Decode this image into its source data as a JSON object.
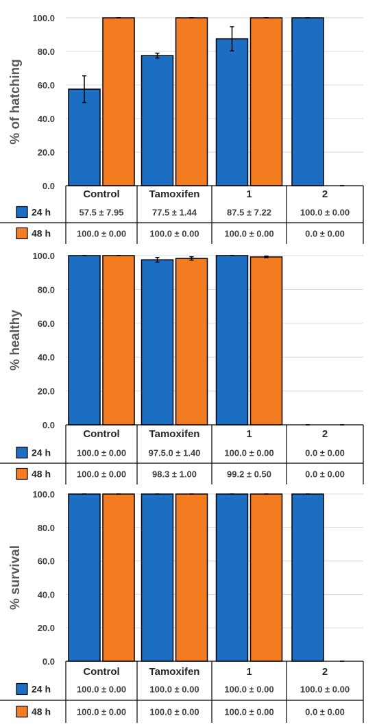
{
  "colors": {
    "h24": "#1b6ec2",
    "h48": "#f47c20",
    "grid": "#d9d9d9",
    "text": "#404040"
  },
  "chart_data": [
    {
      "type": "bar",
      "ylabel": "% of hatching",
      "ylim": [
        0,
        100
      ],
      "yticks": [
        "0.0",
        "20.0",
        "40.0",
        "60.0",
        "80.0",
        "100.0"
      ],
      "grid": true,
      "categories": [
        "Control",
        "Tamoxifen",
        "1",
        "2"
      ],
      "series": [
        {
          "name": "24 h",
          "values": [
            57.5,
            77.5,
            87.5,
            100.0
          ],
          "errors": [
            7.95,
            1.44,
            7.22,
            0.0
          ],
          "labels": [
            "57.5 ± 7.95",
            "77.5 ± 1.44",
            "87.5 ± 7.22",
            "100.0 ± 0.00"
          ]
        },
        {
          "name": "48 h",
          "values": [
            100.0,
            100.0,
            100.0,
            0.0
          ],
          "errors": [
            0.0,
            0.0,
            0.0,
            0.0
          ],
          "labels": [
            "100.0 ± 0.00",
            "100.0 ± 0.00",
            "100.0 ± 0.00",
            "0.0 ± 0.00"
          ]
        }
      ]
    },
    {
      "type": "bar",
      "ylabel": "% healthy",
      "ylim": [
        0,
        100
      ],
      "yticks": [
        "0.0",
        "20.0",
        "40.0",
        "60.0",
        "80.0",
        "100.0"
      ],
      "grid": true,
      "categories": [
        "Control",
        "Tamoxifen",
        "1",
        "2"
      ],
      "series": [
        {
          "name": "24 h",
          "values": [
            100.0,
            97.5,
            100.0,
            0.0
          ],
          "errors": [
            0.0,
            1.4,
            0.0,
            0.0
          ],
          "labels": [
            "100.0 ± 0.00",
            "97.5.0 ± 1.40",
            "100.0 ± 0.00",
            "0.0 ± 0.00"
          ]
        },
        {
          "name": "48 h",
          "values": [
            100.0,
            98.3,
            99.2,
            0.0
          ],
          "errors": [
            0.0,
            1.0,
            0.5,
            0.0
          ],
          "labels": [
            "100.0 ± 0.00",
            "98.3 ± 1.00",
            "99.2 ± 0.50",
            "0.0 ± 0.00"
          ]
        }
      ]
    },
    {
      "type": "bar",
      "ylabel": "% survival",
      "ylim": [
        0,
        100
      ],
      "yticks": [
        "0.0",
        "20.0",
        "40.0",
        "60.0",
        "80.0",
        "100.0"
      ],
      "grid": true,
      "categories": [
        "Control",
        "Tamoxifen",
        "1",
        "2"
      ],
      "series": [
        {
          "name": "24 h",
          "values": [
            100.0,
            100.0,
            100.0,
            100.0
          ],
          "errors": [
            0.0,
            0.0,
            0.0,
            0.0
          ],
          "labels": [
            "100.0 ± 0.00",
            "100.0 ± 0.00",
            "100.0 ± 0.00",
            "100.0 ± 0.00"
          ]
        },
        {
          "name": "48 h",
          "values": [
            100.0,
            100.0,
            100.0,
            0.0
          ],
          "errors": [
            0.0,
            0.0,
            0.0,
            0.0
          ],
          "labels": [
            "100.0 ± 0.00",
            "100.0 ± 0.00",
            "100.0 ± 0.00",
            "0.0 ± 0.00"
          ]
        }
      ]
    }
  ]
}
